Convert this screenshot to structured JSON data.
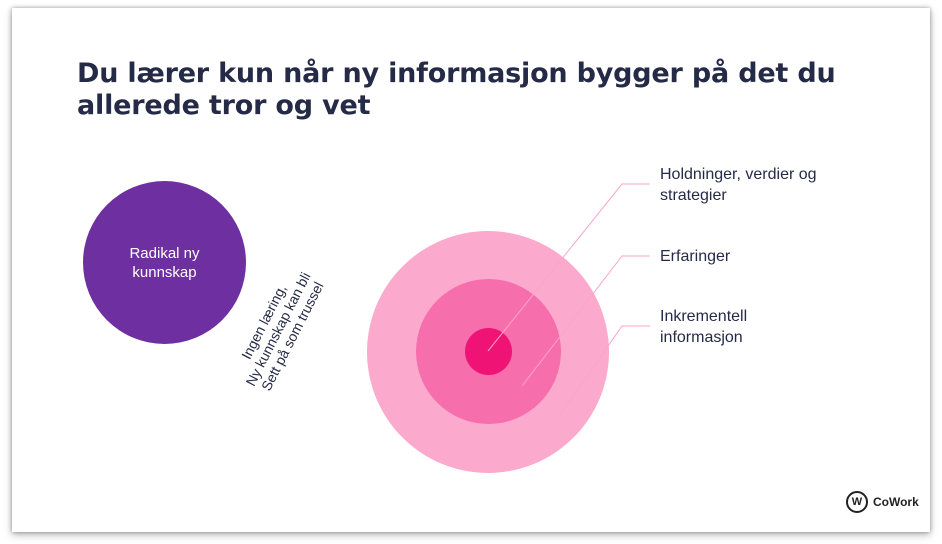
{
  "slide": {
    "title": "Du lærer kun når ny informasjon bygger på det du allerede tror og vet"
  },
  "left": {
    "circle_label": "Radikal ny kunnskap",
    "rotated_lines": [
      "Ingen læring,",
      "Ny kunnskap kan bli",
      "Sett på som trussel"
    ]
  },
  "rings": {
    "labels": {
      "core": "Holdninger, verdier og strategier",
      "middle": "Erfaringer",
      "outer": "Inkrementell informasjon"
    },
    "colors": {
      "outer": "#fbaacd",
      "middle": "#f76eac",
      "core": "#ee1374",
      "purple": "#6e2fa1",
      "leader": "#f7a6c9"
    }
  },
  "logo": {
    "mark": "W",
    "text": "CoWork"
  }
}
